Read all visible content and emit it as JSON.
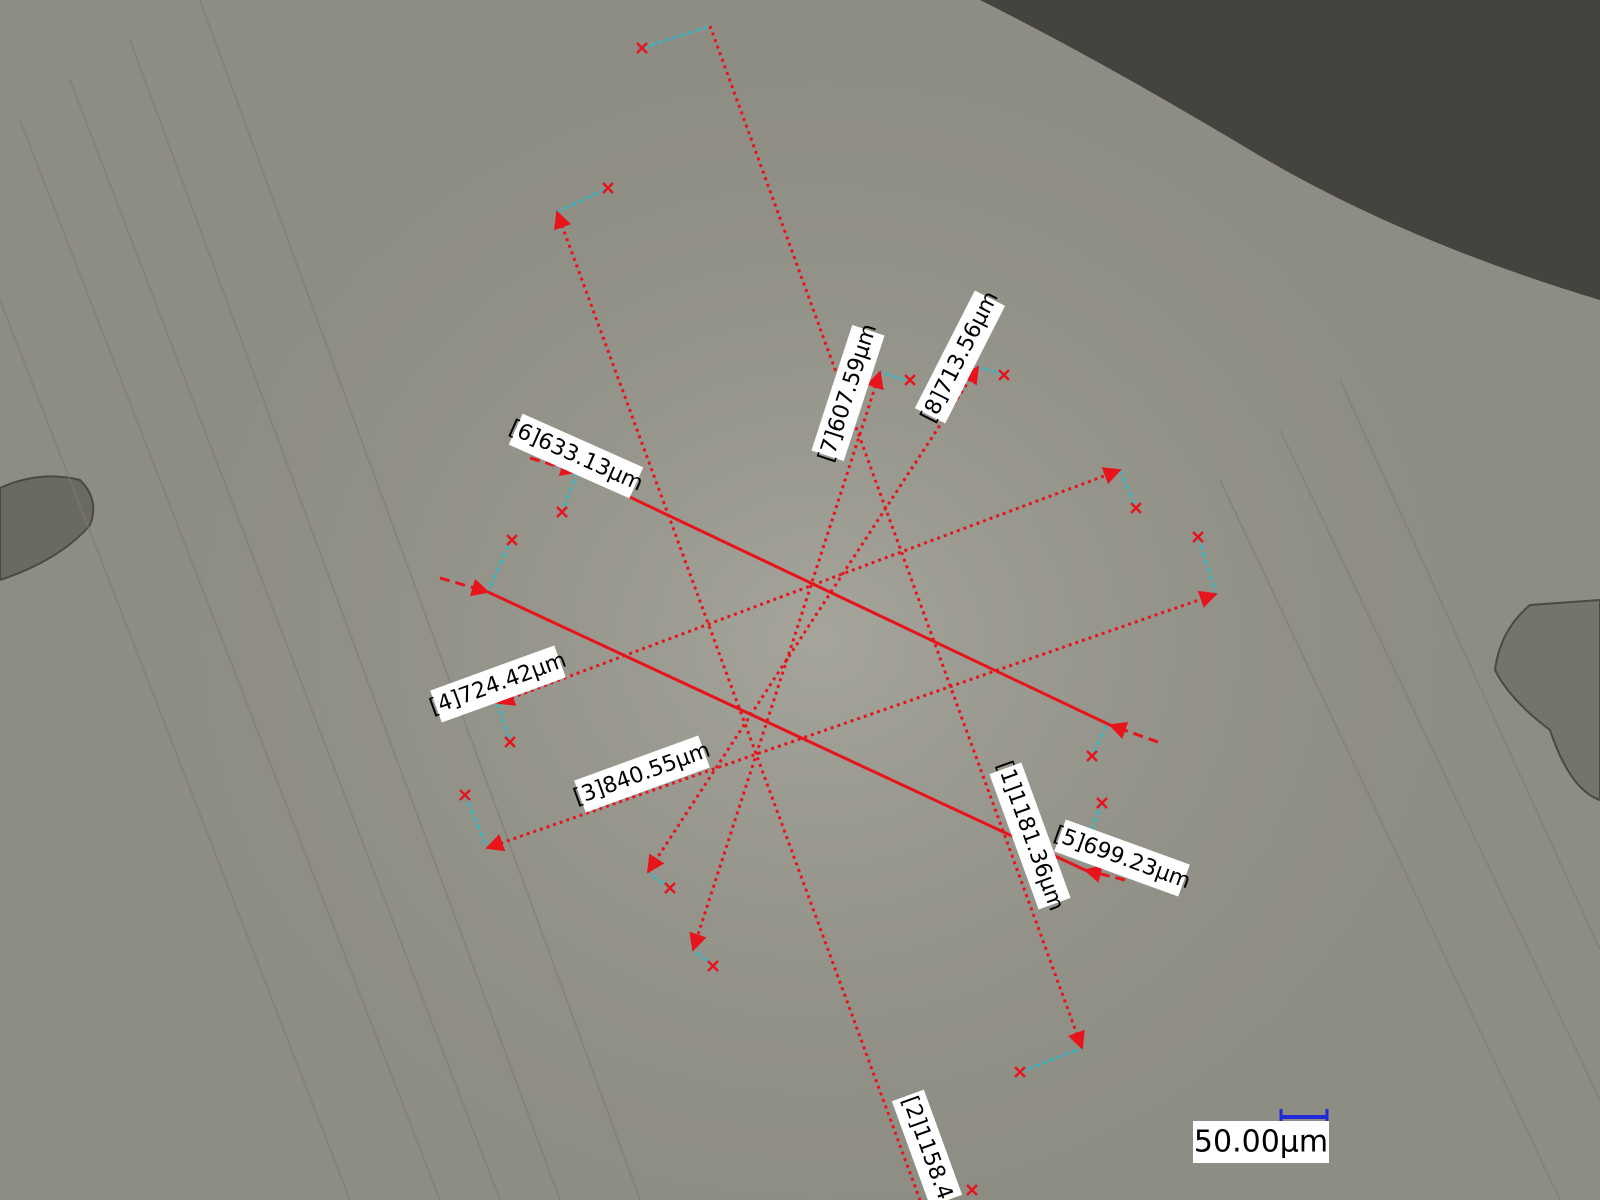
{
  "image": {
    "kind": "optical micrograph with measurement overlay",
    "colors": {
      "background": "#8e8d83",
      "crystal_area": "#9a998f",
      "dark_corner": "#45433f",
      "measure_line": "#e8141c",
      "guide_line": "#34b7c4",
      "endpoint_marker": "#e8141c",
      "label_bg": "#ffffff",
      "label_text": "#000000",
      "scale_bar": "#1f2bd9"
    }
  },
  "measurements": [
    {
      "id": "1",
      "label": "[1]1181.36μm"
    },
    {
      "id": "2",
      "label": "[2]1158.4"
    },
    {
      "id": "3",
      "label": "[3]840.55μm"
    },
    {
      "id": "4",
      "label": "[4]724.42μm"
    },
    {
      "id": "5",
      "label": "[5]699.23μm"
    },
    {
      "id": "6",
      "label": "[6]633.13μm"
    },
    {
      "id": "7",
      "label": "[7]607.59μm"
    },
    {
      "id": "8",
      "label": "[8]713.56μm"
    }
  ],
  "scale_bar": {
    "label": "50.00μm"
  }
}
